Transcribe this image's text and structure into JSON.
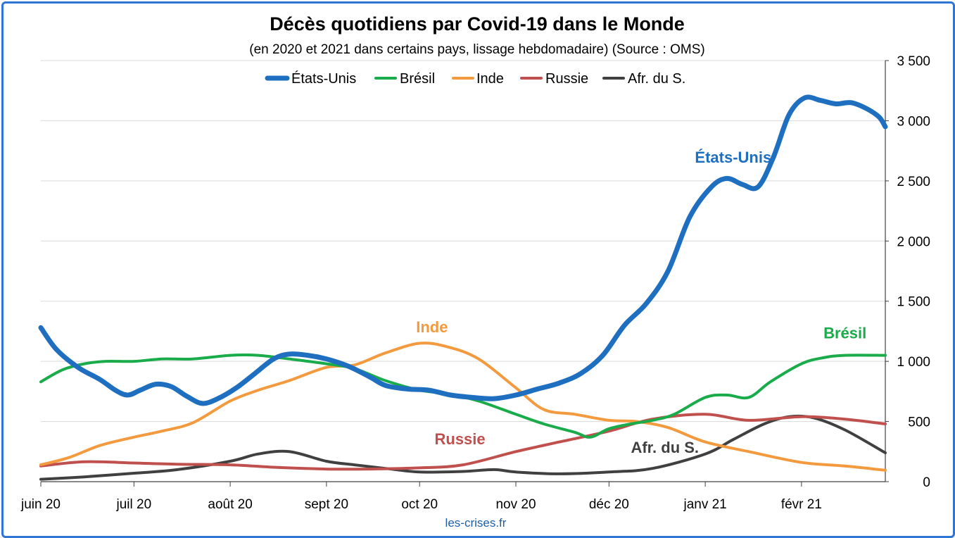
{
  "chart_data": {
    "type": "line",
    "title": "Décès quotidiens par Covid-19 dans le Monde",
    "subtitle": "(en 2020 et 2021 dans certains pays, lissage hebdomadaire) (Source : OMS)",
    "source": "les-crises.fr",
    "x_start": "2020-06-01",
    "x_end": "2021-02-28",
    "xticks": [
      {
        "date": "2020-06-01",
        "label": "juin 20"
      },
      {
        "date": "2020-07-01",
        "label": "juil 20"
      },
      {
        "date": "2020-08-01",
        "label": "août 20"
      },
      {
        "date": "2020-09-01",
        "label": "sept 20"
      },
      {
        "date": "2020-10-01",
        "label": "oct 20"
      },
      {
        "date": "2020-11-01",
        "label": "nov 20"
      },
      {
        "date": "2020-12-01",
        "label": "déc 20"
      },
      {
        "date": "2021-01-01",
        "label": "janv 21"
      },
      {
        "date": "2021-02-01",
        "label": "févr 21"
      }
    ],
    "ylim": [
      0,
      3500
    ],
    "yticks": [
      {
        "value": 0,
        "label": "0"
      },
      {
        "value": 500,
        "label": "500"
      },
      {
        "value": 1000,
        "label": "1 000"
      },
      {
        "value": 1500,
        "label": "1 500"
      },
      {
        "value": 2000,
        "label": "2 000"
      },
      {
        "value": 2500,
        "label": "2 500"
      },
      {
        "value": 3000,
        "label": "3 000"
      },
      {
        "value": 3500,
        "label": "3 500"
      }
    ],
    "y_axis_position": "right",
    "grid": true,
    "legend_position": "top",
    "series": [
      {
        "name": "États-Unis",
        "color": "#1f6fc0",
        "width": 7,
        "label": "États-Unis",
        "points": [
          [
            "2020-06-01",
            1280
          ],
          [
            "2020-06-06",
            1100
          ],
          [
            "2020-06-13",
            950
          ],
          [
            "2020-06-20",
            850
          ],
          [
            "2020-06-25",
            760
          ],
          [
            "2020-06-29",
            720
          ],
          [
            "2020-07-03",
            760
          ],
          [
            "2020-07-08",
            810
          ],
          [
            "2020-07-13",
            790
          ],
          [
            "2020-07-18",
            710
          ],
          [
            "2020-07-23",
            650
          ],
          [
            "2020-07-28",
            690
          ],
          [
            "2020-08-03",
            780
          ],
          [
            "2020-08-09",
            900
          ],
          [
            "2020-08-15",
            1020
          ],
          [
            "2020-08-20",
            1060
          ],
          [
            "2020-08-26",
            1050
          ],
          [
            "2020-09-01",
            1020
          ],
          [
            "2020-09-08",
            960
          ],
          [
            "2020-09-15",
            870
          ],
          [
            "2020-09-20",
            800
          ],
          [
            "2020-09-27",
            770
          ],
          [
            "2020-10-04",
            760
          ],
          [
            "2020-10-11",
            720
          ],
          [
            "2020-10-18",
            700
          ],
          [
            "2020-10-25",
            690
          ],
          [
            "2020-11-01",
            720
          ],
          [
            "2020-11-08",
            770
          ],
          [
            "2020-11-15",
            820
          ],
          [
            "2020-11-22",
            900
          ],
          [
            "2020-11-29",
            1050
          ],
          [
            "2020-12-06",
            1300
          ],
          [
            "2020-12-13",
            1480
          ],
          [
            "2020-12-20",
            1750
          ],
          [
            "2020-12-27",
            2200
          ],
          [
            "2021-01-03",
            2450
          ],
          [
            "2021-01-08",
            2520
          ],
          [
            "2021-01-13",
            2470
          ],
          [
            "2021-01-18",
            2450
          ],
          [
            "2021-01-23",
            2700
          ],
          [
            "2021-01-28",
            3050
          ],
          [
            "2021-02-02",
            3190
          ],
          [
            "2021-02-07",
            3170
          ],
          [
            "2021-02-12",
            3140
          ],
          [
            "2021-02-17",
            3150
          ],
          [
            "2021-02-22",
            3100
          ],
          [
            "2021-02-26",
            3030
          ],
          [
            "2021-02-28",
            2950
          ]
        ]
      },
      {
        "name": "Brésil",
        "color": "#1aab4a",
        "width": 4,
        "label": "Brésil",
        "points": [
          [
            "2020-06-01",
            830
          ],
          [
            "2020-06-08",
            930
          ],
          [
            "2020-06-15",
            980
          ],
          [
            "2020-06-22",
            1000
          ],
          [
            "2020-07-01",
            1000
          ],
          [
            "2020-07-10",
            1020
          ],
          [
            "2020-07-20",
            1020
          ],
          [
            "2020-08-01",
            1050
          ],
          [
            "2020-08-10",
            1050
          ],
          [
            "2020-08-20",
            1020
          ],
          [
            "2020-09-01",
            980
          ],
          [
            "2020-09-10",
            940
          ],
          [
            "2020-09-20",
            840
          ],
          [
            "2020-10-01",
            760
          ],
          [
            "2020-10-10",
            730
          ],
          [
            "2020-10-20",
            670
          ],
          [
            "2020-11-01",
            560
          ],
          [
            "2020-11-10",
            480
          ],
          [
            "2020-11-20",
            410
          ],
          [
            "2020-11-25",
            370
          ],
          [
            "2020-12-01",
            440
          ],
          [
            "2020-12-08",
            480
          ],
          [
            "2020-12-15",
            510
          ],
          [
            "2020-12-22",
            560
          ],
          [
            "2021-01-01",
            700
          ],
          [
            "2021-01-08",
            720
          ],
          [
            "2021-01-15",
            700
          ],
          [
            "2021-01-22",
            830
          ],
          [
            "2021-02-01",
            980
          ],
          [
            "2021-02-08",
            1030
          ],
          [
            "2021-02-15",
            1050
          ],
          [
            "2021-02-28",
            1050
          ]
        ]
      },
      {
        "name": "Inde",
        "color": "#f39a3e",
        "width": 4,
        "label": "Inde",
        "points": [
          [
            "2020-06-01",
            140
          ],
          [
            "2020-06-10",
            200
          ],
          [
            "2020-06-20",
            300
          ],
          [
            "2020-07-01",
            370
          ],
          [
            "2020-07-10",
            420
          ],
          [
            "2020-07-20",
            490
          ],
          [
            "2020-08-01",
            670
          ],
          [
            "2020-08-10",
            760
          ],
          [
            "2020-08-20",
            840
          ],
          [
            "2020-09-01",
            950
          ],
          [
            "2020-09-10",
            970
          ],
          [
            "2020-09-20",
            1070
          ],
          [
            "2020-10-01",
            1150
          ],
          [
            "2020-10-10",
            1120
          ],
          [
            "2020-10-20",
            1020
          ],
          [
            "2020-11-01",
            780
          ],
          [
            "2020-11-10",
            600
          ],
          [
            "2020-11-20",
            560
          ],
          [
            "2020-12-01",
            510
          ],
          [
            "2020-12-10",
            500
          ],
          [
            "2020-12-20",
            450
          ],
          [
            "2021-01-01",
            330
          ],
          [
            "2021-01-15",
            250
          ],
          [
            "2021-02-01",
            160
          ],
          [
            "2021-02-15",
            130
          ],
          [
            "2021-02-28",
            95
          ]
        ]
      },
      {
        "name": "Russie",
        "color": "#c0504d",
        "width": 4,
        "label": "Russie",
        "points": [
          [
            "2020-06-01",
            130
          ],
          [
            "2020-06-15",
            165
          ],
          [
            "2020-07-01",
            155
          ],
          [
            "2020-07-15",
            145
          ],
          [
            "2020-08-01",
            140
          ],
          [
            "2020-08-15",
            120
          ],
          [
            "2020-09-01",
            105
          ],
          [
            "2020-09-15",
            105
          ],
          [
            "2020-10-01",
            115
          ],
          [
            "2020-10-15",
            140
          ],
          [
            "2020-11-01",
            250
          ],
          [
            "2020-11-15",
            330
          ],
          [
            "2020-12-01",
            420
          ],
          [
            "2020-12-15",
            520
          ],
          [
            "2021-01-01",
            560
          ],
          [
            "2021-01-15",
            510
          ],
          [
            "2021-02-01",
            540
          ],
          [
            "2021-02-15",
            520
          ],
          [
            "2021-02-28",
            480
          ]
        ]
      },
      {
        "name": "Afr. du S.",
        "color": "#404040",
        "width": 4,
        "label": "Afr. du S.",
        "points": [
          [
            "2020-06-01",
            20
          ],
          [
            "2020-06-15",
            40
          ],
          [
            "2020-07-01",
            70
          ],
          [
            "2020-07-15",
            100
          ],
          [
            "2020-08-01",
            170
          ],
          [
            "2020-08-10",
            230
          ],
          [
            "2020-08-20",
            250
          ],
          [
            "2020-09-01",
            170
          ],
          [
            "2020-09-10",
            140
          ],
          [
            "2020-09-20",
            110
          ],
          [
            "2020-10-01",
            80
          ],
          [
            "2020-10-15",
            85
          ],
          [
            "2020-10-25",
            100
          ],
          [
            "2020-11-01",
            80
          ],
          [
            "2020-11-15",
            65
          ],
          [
            "2020-12-01",
            80
          ],
          [
            "2020-12-15",
            110
          ],
          [
            "2021-01-01",
            230
          ],
          [
            "2021-01-10",
            350
          ],
          [
            "2021-01-20",
            480
          ],
          [
            "2021-01-28",
            540
          ],
          [
            "2021-02-05",
            530
          ],
          [
            "2021-02-15",
            430
          ],
          [
            "2021-02-28",
            240
          ]
        ]
      }
    ]
  }
}
